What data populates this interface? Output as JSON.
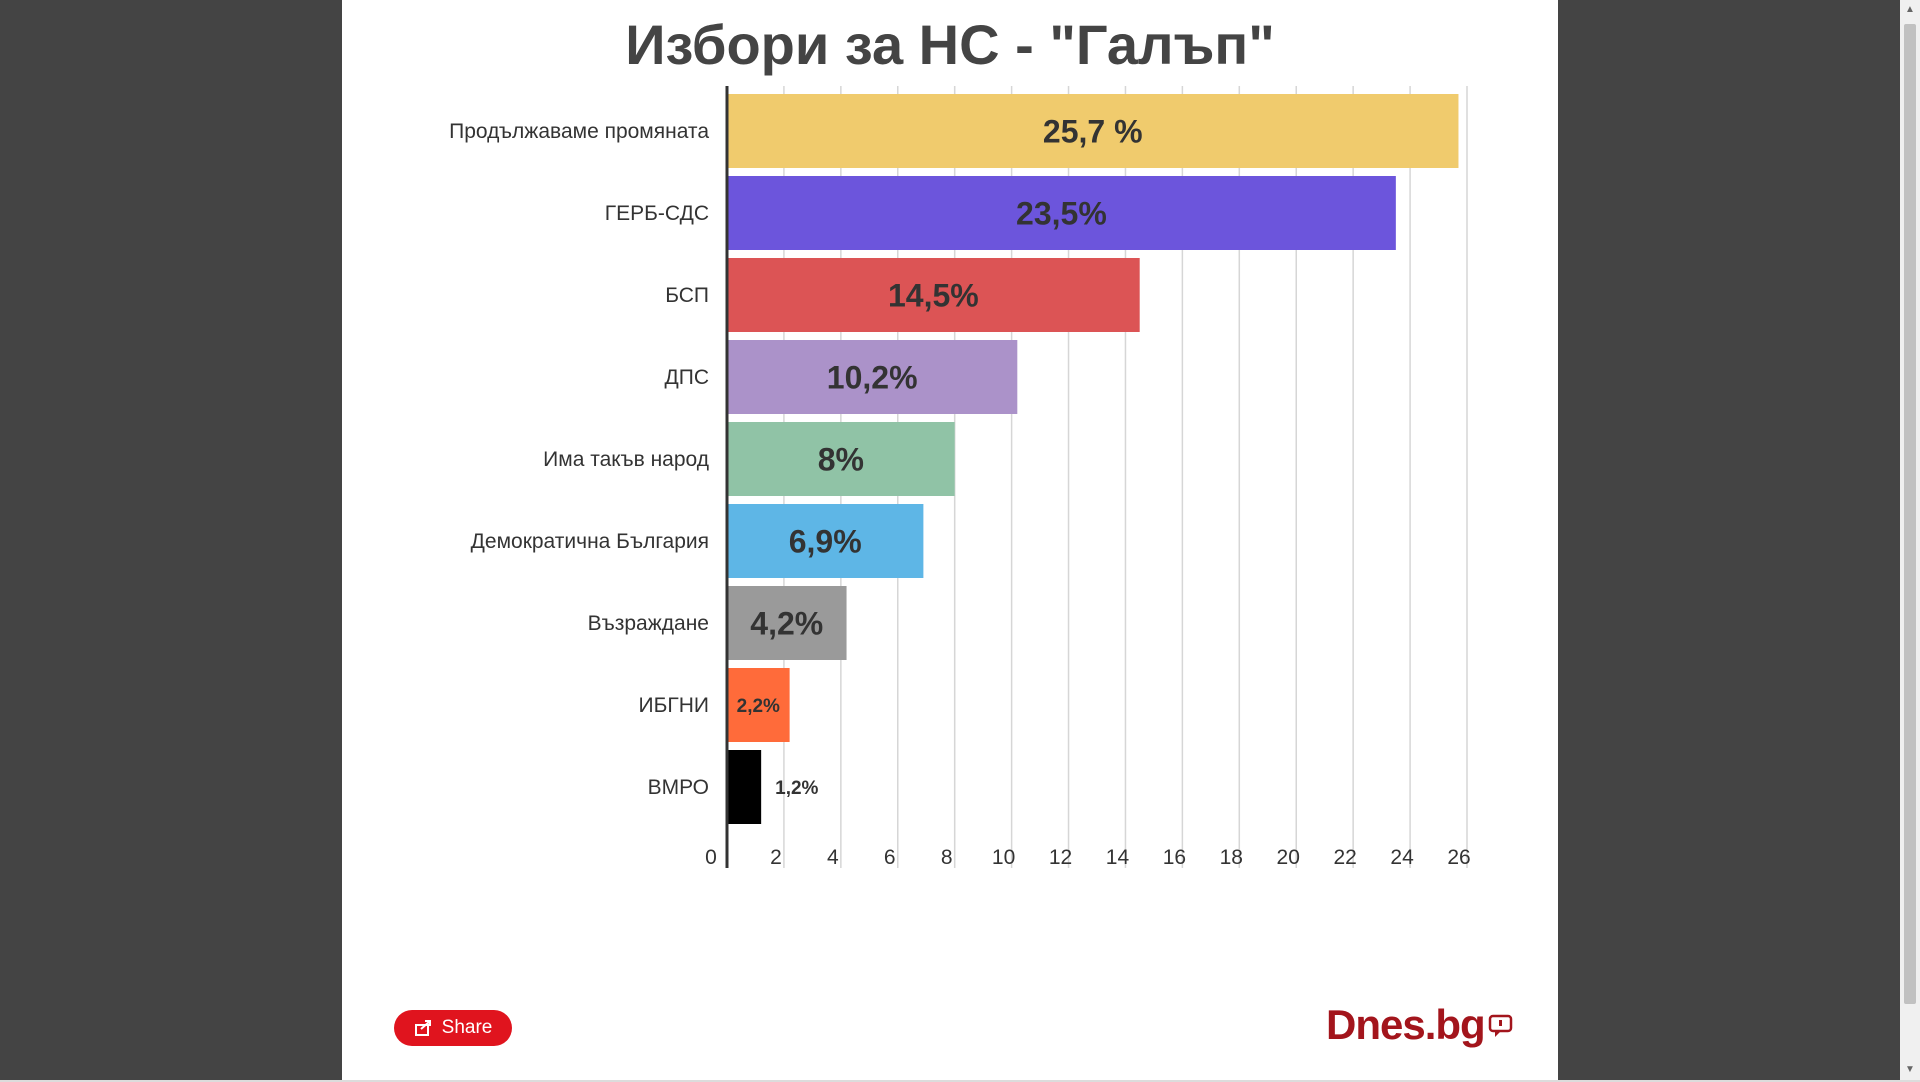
{
  "chart_data": {
    "type": "bar",
    "orientation": "horizontal",
    "title": "Избори за НС - \"Галъп\"",
    "categories": [
      "Продължаваме промяната",
      "ГЕРБ-СДС",
      "БСП",
      "ДПС",
      "Има такъв народ",
      "Демократична България",
      "Възраждане",
      "ИБГНИ",
      "ВМРО"
    ],
    "values": [
      25.7,
      23.5,
      14.5,
      10.2,
      8,
      6.9,
      4.2,
      2.2,
      1.2
    ],
    "data_labels": [
      "25,7 %",
      "23,5%",
      "14,5%",
      "10,2%",
      "8%",
      "6,9%",
      "4,2%",
      "2,2%",
      "1,2%"
    ],
    "colors": [
      "#f0cb6d",
      "#6c55dc",
      "#dc5455",
      "#ab92c9",
      "#90c3a6",
      "#5eb6e6",
      "#9a9a9a",
      "#ff6b3a",
      "#000000"
    ],
    "xlim": [
      0,
      26
    ],
    "xticks": [
      0,
      2,
      4,
      6,
      8,
      10,
      12,
      14,
      16,
      18,
      20,
      22,
      24,
      26
    ],
    "grid": true,
    "xlabel": "",
    "ylabel": ""
  },
  "share": {
    "label": "Share",
    "icon": "share-icon"
  },
  "brand": {
    "text": "Dnes.bg",
    "icon": "speech-bubble-icon",
    "color": "#a3151c"
  }
}
